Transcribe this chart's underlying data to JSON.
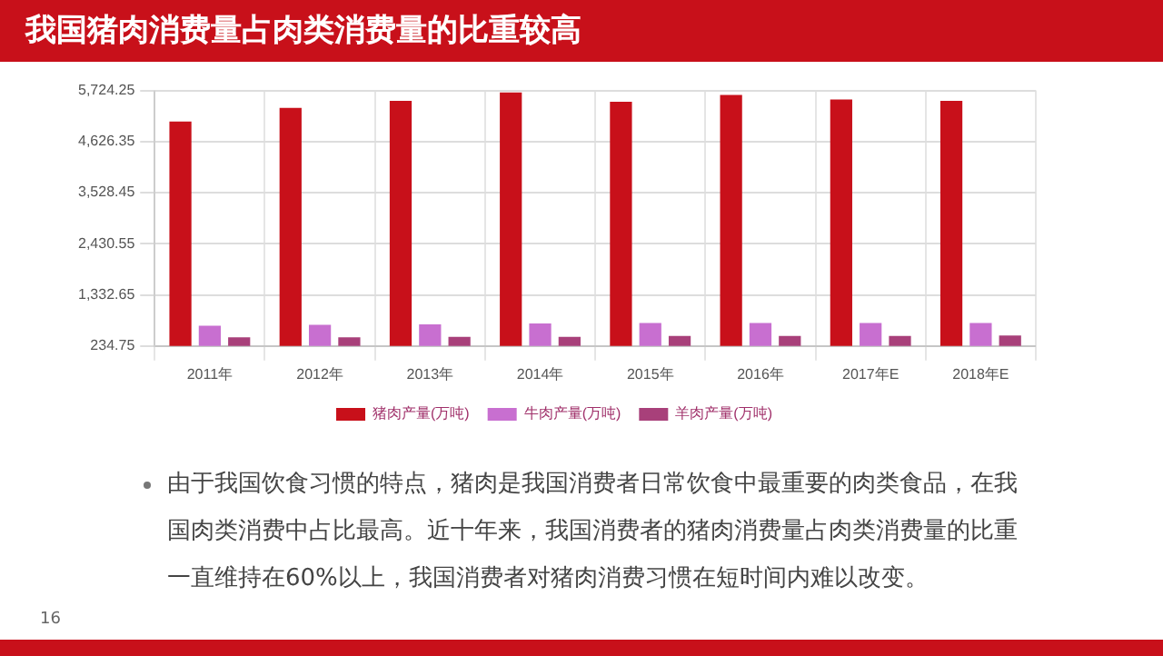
{
  "chart_data": {
    "type": "bar",
    "title": "我国猪肉消费量占肉类消费量的比重较高",
    "categories": [
      "2011年",
      "2012年",
      "2013年",
      "2014年",
      "2015年",
      "2016年",
      "2017年E",
      "2018年E"
    ],
    "series": [
      {
        "name": "猪肉产量(万吨)",
        "color": "#c8101a",
        "values": [
          5060,
          5350,
          5500,
          5680,
          5480,
          5630,
          5530,
          5500
        ]
      },
      {
        "name": "牛肉产量(万吨)",
        "color": "#c86fd0",
        "values": [
          670,
          690,
          700,
          720,
          730,
          730,
          730,
          730
        ]
      },
      {
        "name": "羊肉产量(万吨)",
        "color": "#a8407a",
        "values": [
          420,
          420,
          430,
          430,
          450,
          450,
          450,
          460
        ]
      }
    ],
    "ylim": [
      234.75,
      5724.25
    ],
    "yticks": [
      {
        "value": 234.75,
        "label": "234.75"
      },
      {
        "value": 1332.65,
        "label": "1,332.65"
      },
      {
        "value": 2430.55,
        "label": "2,430.55"
      },
      {
        "value": 3528.45,
        "label": "3,528.45"
      },
      {
        "value": 4626.35,
        "label": "4,626.35"
      },
      {
        "value": 5724.25,
        "label": "5,724.25"
      }
    ],
    "grid": true,
    "legend": "bottom",
    "annotations": [
      "由于我国饮食习惯的特点，猪肉是我国消费者日常饮食中最重要的肉类食品，在我国肉类消费中占比最高。近十年来，我国消费者的猪肉消费量占肉类消费量的比重一直维持在60%以上，我国消费者对猪肉消费习惯在短时间内难以改变。",
      "16"
    ]
  }
}
